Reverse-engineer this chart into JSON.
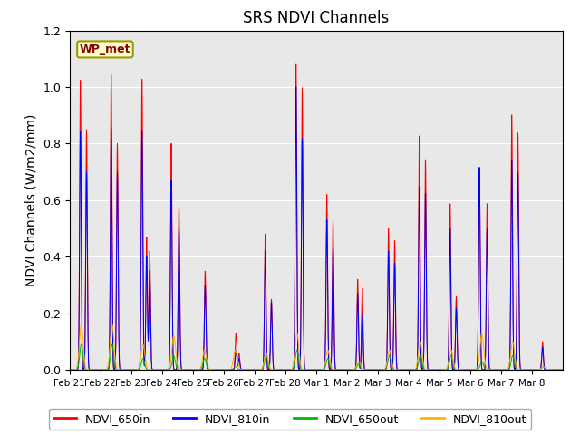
{
  "title": "SRS NDVI Channels",
  "ylabel": "NDVI Channels (W/m2/mm)",
  "annotation": "WP_met",
  "legend_labels": [
    "NDVI_650in",
    "NDVI_810in",
    "NDVI_650out",
    "NDVI_810out"
  ],
  "colors": {
    "NDVI_650in": "#FF0000",
    "NDVI_810in": "#0000FF",
    "NDVI_650out": "#00BB00",
    "NDVI_810out": "#FFB300"
  },
  "xtick_labels": [
    "Feb 21",
    "Feb 22",
    "Feb 23",
    "Feb 24",
    "Feb 25",
    "Feb 26",
    "Feb 27",
    "Feb 28",
    "Mar 1",
    "Mar 2",
    "Mar 3",
    "Mar 4",
    "Mar 5",
    "Mar 6",
    "Mar 7",
    "Mar 8"
  ],
  "ylim": [
    0.0,
    1.2
  ],
  "background_color": "#E8E8E8",
  "title_fontsize": 12,
  "label_fontsize": 10
}
